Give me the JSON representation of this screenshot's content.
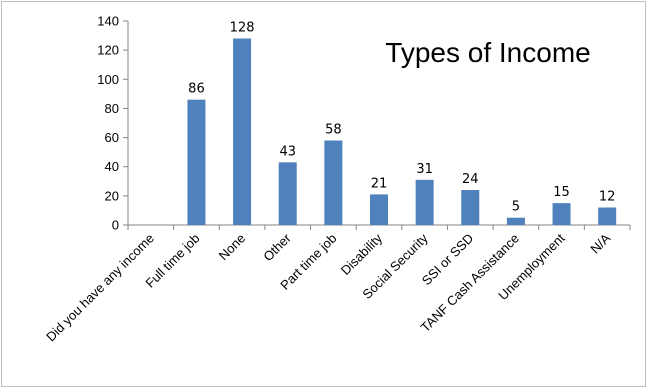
{
  "chart_data": {
    "type": "bar",
    "title": "Types of Income",
    "xlabel": "",
    "ylabel": "",
    "categories": [
      "Did you have any income",
      "Full time job",
      "None",
      "Other",
      "Part time job",
      "Disability",
      "Social Security",
      "SSI or SSD",
      "TANF Cash Assistance",
      "Unemployment",
      "N/A"
    ],
    "values": [
      null,
      86,
      128,
      43,
      58,
      21,
      31,
      24,
      5,
      15,
      12
    ],
    "ylim": [
      0,
      140
    ],
    "yticks": [
      0,
      20,
      40,
      60,
      80,
      100,
      120,
      140
    ],
    "grid": false,
    "legend": "none",
    "bar_color": "#4F81BD",
    "axis_color": "#868686"
  }
}
